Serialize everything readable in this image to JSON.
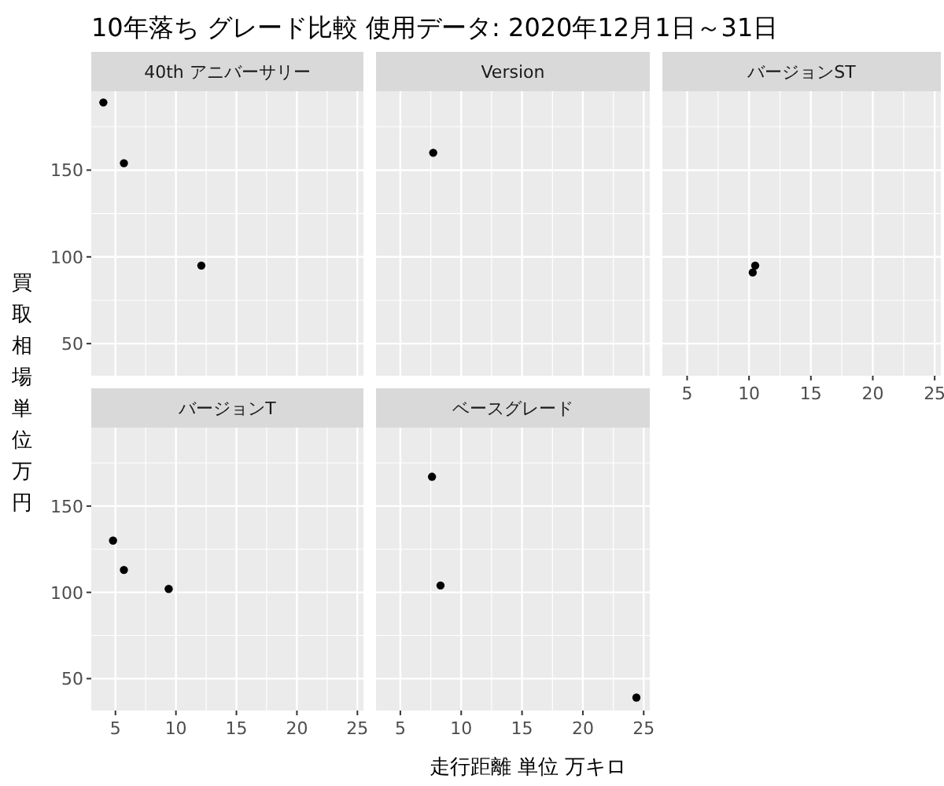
{
  "chart_data": [
    {
      "type": "scatter",
      "title": "10年落ち グレード比較 使用データ: 2020年12月1日～31日",
      "subtitle": "40th アニバーサリー",
      "ylabel": "買取相場単位万円",
      "x": [
        4.0,
        5.7,
        12.1
      ],
      "values": [
        189,
        154,
        95
      ],
      "color": "#000000",
      "marker": "circle",
      "xlim": [
        3,
        25.5
      ],
      "ylim": [
        31.5,
        195.5
      ],
      "xticks": [
        5,
        10,
        15,
        20,
        25
      ],
      "yticks": [
        50,
        100,
        150
      ],
      "grid": true,
      "tick_labels": "y"
    },
    {
      "type": "scatter",
      "subtitle": "Version",
      "x": [
        7.7
      ],
      "values": [
        160
      ],
      "color": "#000000",
      "marker": "circle",
      "xlim": [
        3,
        25.5
      ],
      "ylim": [
        31.5,
        195.5
      ],
      "xticks": [
        5,
        10,
        15,
        20,
        25
      ],
      "yticks": [
        50,
        100,
        150
      ],
      "grid": true,
      "tick_labels": false
    },
    {
      "type": "scatter",
      "subtitle": "バージョンST",
      "x": [
        10.5,
        10.3
      ],
      "values": [
        95,
        91
      ],
      "color": "#000000",
      "marker": "circle",
      "xlim": [
        3,
        25.5
      ],
      "ylim": [
        31.5,
        195.5
      ],
      "xticks": [
        5,
        10,
        15,
        20,
        25
      ],
      "yticks": [
        50,
        100,
        150
      ],
      "grid": true,
      "tick_labels": "x"
    },
    {
      "type": "scatter",
      "subtitle": "バージョンT",
      "x": [
        4.8,
        5.7,
        9.4
      ],
      "values": [
        130,
        113,
        102
      ],
      "color": "#000000",
      "marker": "circle",
      "xlim": [
        3,
        25.5
      ],
      "ylim": [
        31.5,
        195.5
      ],
      "xticks": [
        5,
        10,
        15,
        20,
        25
      ],
      "yticks": [
        50,
        100,
        150
      ],
      "grid": true
    },
    {
      "type": "scatter",
      "subtitle": "ベースグレード",
      "xlabel": "走行距離 単位 万キロ",
      "x": [
        7.6,
        8.3,
        24.4
      ],
      "values": [
        167,
        104,
        39
      ],
      "color": "#000000",
      "marker": "circle",
      "xlim": [
        3,
        25.5
      ],
      "ylim": [
        31.5,
        195.5
      ],
      "xticks": [
        5,
        10,
        15,
        20,
        25
      ],
      "yticks": [
        50,
        100,
        150
      ],
      "grid": true,
      "tick_labels": "x"
    }
  ]
}
